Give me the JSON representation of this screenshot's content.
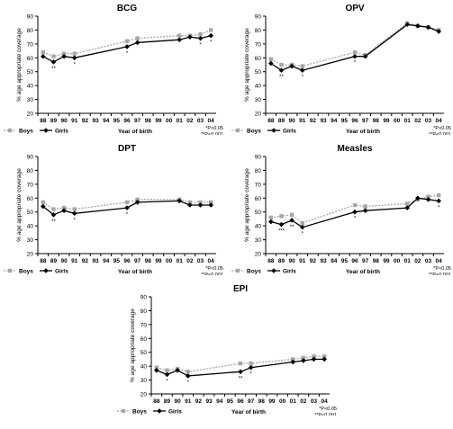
{
  "colors": {
    "boys": "#a6a6a6",
    "girls": "#000000",
    "axis": "#000000"
  },
  "common": {
    "ylabel": "% age appropriate coverage",
    "xlabel": "Year of birth",
    "legend": [
      "Boys",
      "Girls"
    ],
    "sig_lines": [
      "*P<0.05",
      "**P<0.001"
    ]
  },
  "chart_data": [
    {
      "type": "line",
      "title": "BCG",
      "x": [
        "88",
        "89",
        "90",
        "91",
        "92",
        "93",
        "94",
        "95",
        "96",
        "97",
        "98",
        "99",
        "00",
        "01",
        "02",
        "03",
        "04"
      ],
      "ylim": [
        20,
        90
      ],
      "yticks": [
        20,
        30,
        40,
        50,
        60,
        70,
        80,
        90
      ],
      "ylabel": "% age appropriate coverage",
      "xlabel": "Year of birth",
      "legend_position": "bottom-left",
      "series": [
        {
          "name": "Boys",
          "line": "dotted",
          "marker": "square",
          "points": [
            [
              "88",
              64
            ],
            [
              "89",
              61
            ],
            [
              "90",
              63
            ],
            [
              "91",
              63
            ],
            [
              "96",
              72
            ],
            [
              "97",
              74
            ],
            [
              "01",
              76
            ],
            [
              "02",
              76
            ],
            [
              "03",
              77
            ],
            [
              "04",
              80
            ]
          ]
        },
        {
          "name": "Girls",
          "line": "solid",
          "marker": "diamond",
          "points": [
            [
              "88",
              61
            ],
            [
              "89",
              57
            ],
            [
              "90",
              61
            ],
            [
              "91",
              60
            ],
            [
              "96",
              68
            ],
            [
              "97",
              71
            ],
            [
              "01",
              73
            ],
            [
              "02",
              75
            ],
            [
              "03",
              74
            ],
            [
              "04",
              76
            ]
          ]
        }
      ],
      "significance_marks": [
        [
          "89",
          "**"
        ],
        [
          "91",
          "*"
        ],
        [
          "96",
          "*"
        ],
        [
          "03",
          "*"
        ],
        [
          "04",
          "*"
        ]
      ]
    },
    {
      "type": "line",
      "title": "OPV",
      "x": [
        "88",
        "89",
        "90",
        "91",
        "92",
        "93",
        "94",
        "95",
        "96",
        "97",
        "98",
        "99",
        "00",
        "01",
        "02",
        "03",
        "04"
      ],
      "ylim": [
        20,
        90
      ],
      "yticks": [
        20,
        30,
        40,
        50,
        60,
        70,
        80,
        90
      ],
      "ylabel": "% age appropriate coverage",
      "xlabel": "Year of birth",
      "legend_position": "bottom-left",
      "series": [
        {
          "name": "Boys",
          "line": "dotted",
          "marker": "square",
          "points": [
            [
              "88",
              59
            ],
            [
              "89",
              55
            ],
            [
              "90",
              55
            ],
            [
              "91",
              54
            ],
            [
              "96",
              64
            ],
            [
              "97",
              62
            ],
            [
              "01",
              85
            ],
            [
              "02",
              83
            ],
            [
              "03",
              82
            ],
            [
              "04",
              80
            ]
          ]
        },
        {
          "name": "Girls",
          "line": "solid",
          "marker": "diamond",
          "points": [
            [
              "88",
              56
            ],
            [
              "89",
              51
            ],
            [
              "90",
              54
            ],
            [
              "91",
              51
            ],
            [
              "96",
              61
            ],
            [
              "97",
              61
            ],
            [
              "01",
              84
            ],
            [
              "02",
              83
            ],
            [
              "03",
              82
            ],
            [
              "04",
              79
            ]
          ]
        }
      ],
      "significance_marks": [
        [
          "89",
          "**"
        ],
        [
          "91",
          "*"
        ],
        [
          "96",
          "*"
        ]
      ]
    },
    {
      "type": "line",
      "title": "DPT",
      "x": [
        "88",
        "89",
        "90",
        "91",
        "92",
        "93",
        "94",
        "95",
        "96",
        "97",
        "98",
        "99",
        "00",
        "01",
        "02",
        "03",
        "04"
      ],
      "ylim": [
        20,
        90
      ],
      "yticks": [
        20,
        30,
        40,
        50,
        60,
        70,
        80,
        90
      ],
      "ylabel": "% age appropriate coverage",
      "xlabel": "Year of birth",
      "legend_position": "bottom-left",
      "series": [
        {
          "name": "Boys",
          "line": "dotted",
          "marker": "square",
          "points": [
            [
              "88",
              57
            ],
            [
              "89",
              52
            ],
            [
              "90",
              53
            ],
            [
              "91",
              52
            ],
            [
              "96",
              57
            ],
            [
              "97",
              59
            ],
            [
              "01",
              59
            ],
            [
              "02",
              57
            ],
            [
              "03",
              57
            ],
            [
              "04",
              57
            ]
          ]
        },
        {
          "name": "Girls",
          "line": "solid",
          "marker": "diamond",
          "points": [
            [
              "88",
              54
            ],
            [
              "89",
              48
            ],
            [
              "90",
              51
            ],
            [
              "91",
              49
            ],
            [
              "96",
              53
            ],
            [
              "97",
              57
            ],
            [
              "01",
              58
            ],
            [
              "02",
              55
            ],
            [
              "03",
              55
            ],
            [
              "04",
              55
            ]
          ]
        }
      ],
      "significance_marks": [
        [
          "89",
          "**"
        ],
        [
          "91",
          "*"
        ],
        [
          "96",
          "*"
        ]
      ]
    },
    {
      "type": "line",
      "title": "Measles",
      "x": [
        "88",
        "89",
        "90",
        "91",
        "92",
        "93",
        "94",
        "95",
        "96",
        "97",
        "98",
        "99",
        "00",
        "01",
        "02",
        "03",
        "04"
      ],
      "ylim": [
        20,
        90
      ],
      "yticks": [
        20,
        30,
        40,
        50,
        60,
        70,
        80,
        90
      ],
      "ylabel": "% age appropriate coverage",
      "xlabel": "Year of birth",
      "legend_position": "bottom-left",
      "series": [
        {
          "name": "Boys",
          "line": "dotted",
          "marker": "square",
          "points": [
            [
              "88",
              46
            ],
            [
              "89",
              47
            ],
            [
              "90",
              48
            ],
            [
              "91",
              42
            ],
            [
              "96",
              55
            ],
            [
              "97",
              54
            ],
            [
              "01",
              56
            ],
            [
              "02",
              59
            ],
            [
              "03",
              61
            ],
            [
              "04",
              62
            ]
          ]
        },
        {
          "name": "Girls",
          "line": "solid",
          "marker": "diamond",
          "points": [
            [
              "88",
              43
            ],
            [
              "89",
              41
            ],
            [
              "90",
              44
            ],
            [
              "91",
              39
            ],
            [
              "96",
              50
            ],
            [
              "97",
              51
            ],
            [
              "01",
              53
            ],
            [
              "02",
              60
            ],
            [
              "03",
              59
            ],
            [
              "04",
              58
            ]
          ]
        }
      ],
      "significance_marks": [
        [
          "89",
          "***"
        ],
        [
          "90",
          "**"
        ],
        [
          "91",
          "*"
        ],
        [
          "96",
          "*"
        ],
        [
          "04",
          "*"
        ]
      ]
    },
    {
      "type": "line",
      "title": "EPI",
      "x": [
        "88",
        "89",
        "90",
        "91",
        "92",
        "93",
        "94",
        "95",
        "96",
        "97",
        "98",
        "99",
        "00",
        "01",
        "02",
        "03",
        "04"
      ],
      "ylim": [
        20,
        90
      ],
      "yticks": [
        20,
        30,
        40,
        50,
        60,
        70,
        80,
        90
      ],
      "ylabel": "% age appropriate coverage",
      "xlabel": "Year of birth",
      "legend_position": "bottom-left",
      "series": [
        {
          "name": "Boys",
          "line": "dotted",
          "marker": "square",
          "points": [
            [
              "88",
              39
            ],
            [
              "89",
              37
            ],
            [
              "90",
              38
            ],
            [
              "91",
              36
            ],
            [
              "96",
              42
            ],
            [
              "97",
              42
            ],
            [
              "01",
              45
            ],
            [
              "02",
              46
            ],
            [
              "03",
              47
            ],
            [
              "04",
              47
            ]
          ]
        },
        {
          "name": "Girls",
          "line": "solid",
          "marker": "diamond",
          "points": [
            [
              "88",
              37
            ],
            [
              "89",
              34
            ],
            [
              "90",
              37
            ],
            [
              "91",
              33
            ],
            [
              "96",
              36
            ],
            [
              "97",
              39
            ],
            [
              "01",
              43
            ],
            [
              "02",
              44
            ],
            [
              "03",
              45
            ],
            [
              "04",
              45
            ]
          ]
        }
      ],
      "significance_marks": [
        [
          "89",
          "*"
        ],
        [
          "91",
          "*"
        ],
        [
          "96",
          "**"
        ],
        [
          "97",
          "*"
        ]
      ]
    }
  ]
}
